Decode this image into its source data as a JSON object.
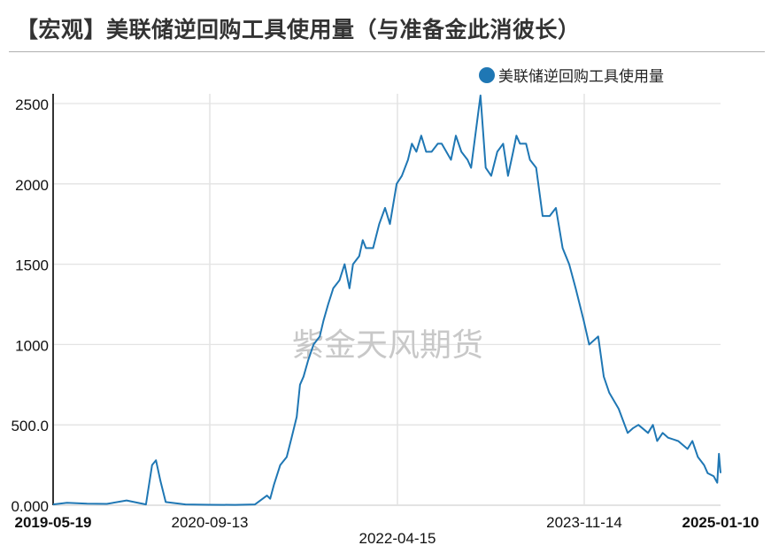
{
  "title": "【宏观】美联储逆回购工具使用量（与准备金此消彼长）",
  "legend": {
    "label": "美联储逆回购工具使用量",
    "color": "#1f77b4"
  },
  "watermark": "紫金天风期货",
  "y_axis": {
    "ticks": [
      "0.000",
      "500.0",
      "1000",
      "1500",
      "2000",
      "2500"
    ]
  },
  "x_axis": {
    "ticks": [
      {
        "label": "2019-05-19",
        "bold": true
      },
      {
        "label": "2020-09-13",
        "bold": false
      },
      {
        "label": "2022-04-15",
        "bold": false
      },
      {
        "label": "2023-11-14",
        "bold": false
      },
      {
        "label": "2025-01-10",
        "bold": true
      }
    ]
  },
  "chart_data": {
    "type": "line",
    "title": "【宏观】美联储逆回购工具使用量（与准备金此消彼长）",
    "xlabel": "",
    "ylabel": "",
    "ylim": [
      0,
      2500
    ],
    "grid": true,
    "legend_position": "top-right",
    "series": [
      {
        "name": "美联储逆回购工具使用量",
        "color": "#1f77b4",
        "x": [
          "2019-05-19",
          "2019-07-01",
          "2019-09-01",
          "2019-11-01",
          "2020-01-01",
          "2020-03-01",
          "2020-03-20",
          "2020-04-01",
          "2020-04-15",
          "2020-05-01",
          "2020-07-01",
          "2020-09-13",
          "2020-12-01",
          "2021-02-01",
          "2021-03-10",
          "2021-03-20",
          "2021-04-01",
          "2021-04-20",
          "2021-05-10",
          "2021-05-25",
          "2021-06-10",
          "2021-06-20",
          "2021-07-01",
          "2021-07-15",
          "2021-08-01",
          "2021-08-20",
          "2021-09-01",
          "2021-09-15",
          "2021-10-01",
          "2021-10-20",
          "2021-11-05",
          "2021-11-20",
          "2021-12-01",
          "2021-12-20",
          "2021-12-31",
          "2022-01-10",
          "2022-02-01",
          "2022-02-20",
          "2022-03-10",
          "2022-03-25",
          "2022-04-15",
          "2022-05-01",
          "2022-05-20",
          "2022-06-01",
          "2022-06-15",
          "2022-06-30",
          "2022-07-15",
          "2022-08-01",
          "2022-08-20",
          "2022-09-01",
          "2022-09-30",
          "2022-10-15",
          "2022-11-01",
          "2022-11-20",
          "2022-12-01",
          "2022-12-30",
          "2023-01-15",
          "2023-02-01",
          "2023-02-20",
          "2023-03-10",
          "2023-03-25",
          "2023-04-10",
          "2023-04-20",
          "2023-05-01",
          "2023-05-20",
          "2023-06-01",
          "2023-06-20",
          "2023-07-10",
          "2023-08-01",
          "2023-08-20",
          "2023-09-10",
          "2023-09-30",
          "2023-10-20",
          "2023-11-14",
          "2023-12-01",
          "2023-12-29",
          "2024-01-15",
          "2024-02-01",
          "2024-03-01",
          "2024-03-29",
          "2024-04-15",
          "2024-05-01",
          "2024-05-31",
          "2024-06-15",
          "2024-06-28",
          "2024-07-15",
          "2024-08-01",
          "2024-09-01",
          "2024-09-30",
          "2024-10-15",
          "2024-11-01",
          "2024-11-20",
          "2024-12-01",
          "2024-12-20",
          "2024-12-31",
          "2025-01-05",
          "2025-01-10"
        ],
        "values": [
          5,
          15,
          10,
          8,
          30,
          5,
          250,
          280,
          150,
          20,
          5,
          3,
          2,
          5,
          60,
          40,
          130,
          250,
          300,
          420,
          550,
          750,
          800,
          900,
          1000,
          1050,
          1150,
          1250,
          1350,
          1400,
          1500,
          1350,
          1500,
          1550,
          1650,
          1600,
          1600,
          1750,
          1850,
          1750,
          2000,
          2050,
          2150,
          2250,
          2200,
          2300,
          2200,
          2200,
          2250,
          2250,
          2150,
          2300,
          2200,
          2150,
          2100,
          2550,
          2100,
          2050,
          2200,
          2250,
          2050,
          2200,
          2300,
          2250,
          2250,
          2150,
          2100,
          1800,
          1800,
          1850,
          1600,
          1500,
          1350,
          1150,
          1000,
          1050,
          800,
          700,
          600,
          450,
          480,
          500,
          450,
          500,
          400,
          450,
          420,
          400,
          350,
          400,
          300,
          250,
          200,
          180,
          140,
          320,
          200
        ]
      }
    ]
  }
}
